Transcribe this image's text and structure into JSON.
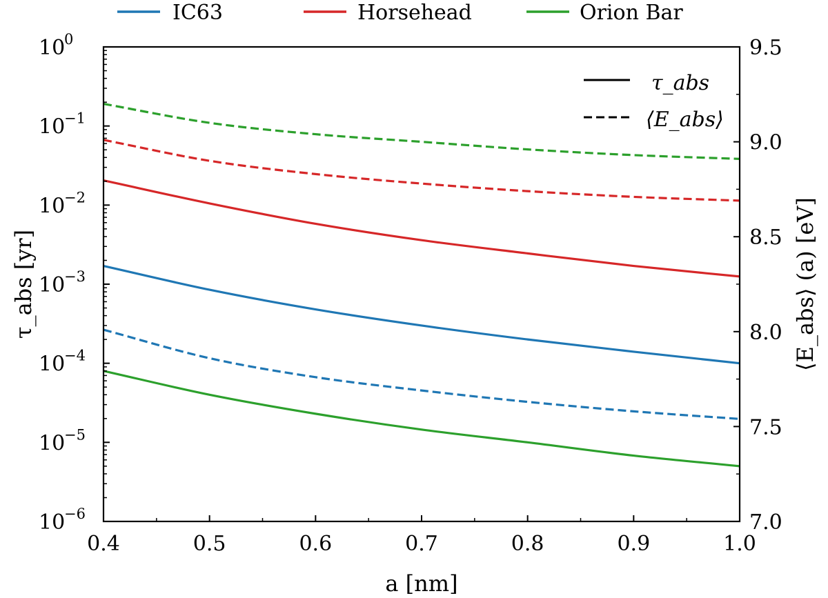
{
  "chart_data": {
    "type": "line",
    "xlabel": "a [nm]",
    "ylabel_left": "τ_abs [yr]",
    "ylabel_right": "⟨E_abs⟩ (a) [eV]",
    "xlim": [
      0.4,
      1.0
    ],
    "ylim_left_log10": [
      -6,
      0
    ],
    "ylim_right": [
      7.0,
      9.5
    ],
    "x_ticks": [
      "0.4",
      "0.5",
      "0.6",
      "0.7",
      "0.8",
      "0.9",
      "1.0"
    ],
    "y_left_ticks": [
      {
        "base": "10",
        "exp": "0"
      },
      {
        "base": "10",
        "exp": "−1"
      },
      {
        "base": "10",
        "exp": "−2"
      },
      {
        "base": "10",
        "exp": "−3"
      },
      {
        "base": "10",
        "exp": "−4"
      },
      {
        "base": "10",
        "exp": "−5"
      },
      {
        "base": "10",
        "exp": "−6"
      }
    ],
    "y_right_ticks": [
      "9.5",
      "9.0",
      "8.5",
      "8.0",
      "7.5",
      "7.0"
    ],
    "x": [
      0.4,
      0.5,
      0.6,
      0.7,
      0.8,
      0.9,
      1.0
    ],
    "series": [
      {
        "name": "IC63",
        "color": "#1f77b4",
        "quantity": "tau_abs",
        "axis": "left",
        "style": "solid",
        "values": [
          0.0017,
          0.00085,
          0.00048,
          0.0003,
          0.0002,
          0.00014,
          0.0001
        ]
      },
      {
        "name": "Horsehead",
        "color": "#d62728",
        "quantity": "tau_abs",
        "axis": "left",
        "style": "solid",
        "values": [
          0.0205,
          0.0105,
          0.0058,
          0.0036,
          0.00245,
          0.0017,
          0.00125
        ]
      },
      {
        "name": "Orion Bar",
        "color": "#2ca02c",
        "quantity": "tau_abs",
        "axis": "left",
        "style": "solid",
        "values": [
          8e-05,
          4e-05,
          2.3e-05,
          1.45e-05,
          1e-05,
          6.8e-06,
          5e-06
        ]
      },
      {
        "name": "IC63",
        "color": "#1f77b4",
        "quantity": "E_abs",
        "axis": "right",
        "style": "dashed",
        "values": [
          8.01,
          7.86,
          7.76,
          7.69,
          7.63,
          7.58,
          7.54
        ]
      },
      {
        "name": "Horsehead",
        "color": "#d62728",
        "quantity": "E_abs",
        "axis": "right",
        "style": "dashed",
        "values": [
          9.01,
          8.9,
          8.83,
          8.78,
          8.74,
          8.71,
          8.69
        ]
      },
      {
        "name": "Orion Bar",
        "color": "#2ca02c",
        "quantity": "E_abs",
        "axis": "right",
        "style": "dashed",
        "values": [
          9.2,
          9.1,
          9.04,
          9.0,
          8.96,
          8.93,
          8.91
        ]
      }
    ],
    "legend_top": {
      "placement": "top-center",
      "entries": [
        {
          "label": "IC63",
          "color": "#1f77b4"
        },
        {
          "label": "Horsehead",
          "color": "#d62728"
        },
        {
          "label": "Orion Bar",
          "color": "#2ca02c"
        }
      ]
    },
    "legend_style": {
      "placement": "top-right",
      "solid_label": "τ_abs",
      "dashed_label": "⟨E_abs⟩"
    }
  }
}
